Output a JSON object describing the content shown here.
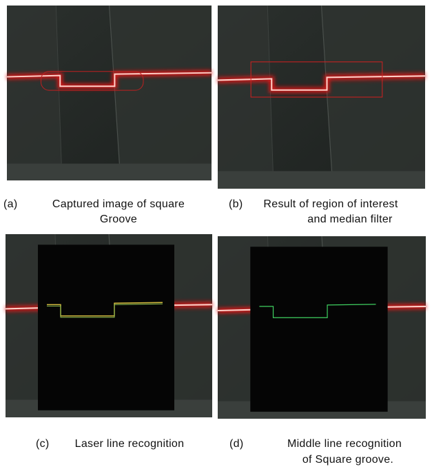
{
  "panels": [
    {
      "label": "(a)",
      "caption": [
        "Captured image of square",
        "Groove"
      ]
    },
    {
      "label": "(b)",
      "caption": [
        "Result of region of interest",
        "and median filter"
      ]
    },
    {
      "label": "(c)",
      "caption": [
        "Laser line recognition"
      ]
    },
    {
      "label": "(d)",
      "caption": [
        "Middle line recognition",
        "of Square groove."
      ]
    }
  ]
}
